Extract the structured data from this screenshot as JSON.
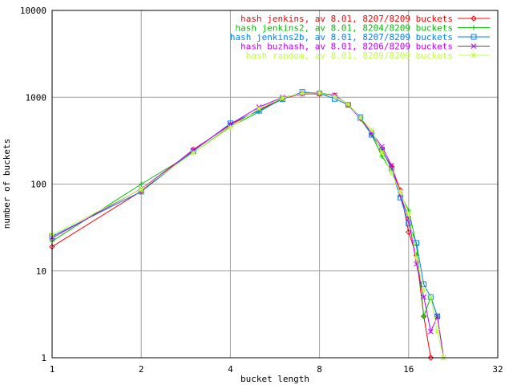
{
  "chart_data": {
    "type": "line",
    "xlabel": "bucket length",
    "ylabel": "number of buckets",
    "x_scale": "log2",
    "y_scale": "log10",
    "xlim": [
      1,
      32
    ],
    "ylim": [
      1,
      10000
    ],
    "grid": true,
    "legend_position": "top-right",
    "x_ticks": [
      "1",
      "2",
      "4",
      "8",
      "16",
      "32"
    ],
    "y_ticks": [
      "1",
      "10",
      "100",
      "1000",
      "10000"
    ],
    "series": [
      {
        "name": "hash jenkins, av 8.01, 8207/8209 buckets",
        "color": "#ff0000",
        "marker": "diamond",
        "points": [
          [
            1,
            19
          ],
          [
            2,
            83
          ],
          [
            3,
            250
          ],
          [
            4,
            480
          ],
          [
            5,
            720
          ],
          [
            6,
            960
          ],
          [
            7,
            1100
          ],
          [
            8,
            1090
          ],
          [
            9,
            1050
          ],
          [
            10,
            820
          ],
          [
            11,
            570
          ],
          [
            12,
            380
          ],
          [
            13,
            240
          ],
          [
            14,
            160
          ],
          [
            15,
            85
          ],
          [
            16,
            28
          ],
          [
            17,
            15
          ],
          [
            18,
            3
          ],
          [
            19,
            1
          ]
        ]
      },
      {
        "name": "hash jenkins2, av 8.01, 8204/8209 buckets",
        "color": "#00c000",
        "marker": "plus",
        "points": [
          [
            1,
            22
          ],
          [
            2,
            100
          ],
          [
            3,
            230
          ],
          [
            4,
            460
          ],
          [
            5,
            680
          ],
          [
            6,
            970
          ],
          [
            7,
            1120
          ],
          [
            8,
            1130
          ],
          [
            9,
            1040
          ],
          [
            10,
            830
          ],
          [
            11,
            560
          ],
          [
            12,
            370
          ],
          [
            13,
            210
          ],
          [
            14,
            140
          ],
          [
            15,
            75
          ],
          [
            16,
            50
          ],
          [
            17,
            20
          ],
          [
            18,
            3
          ],
          [
            19,
            5
          ],
          [
            20,
            3
          ],
          [
            21,
            1
          ]
        ]
      },
      {
        "name": "hash jenkins2b, av 8.01, 8207/8209 buckets",
        "color": "#0080ff",
        "marker": "square",
        "points": [
          [
            1,
            25
          ],
          [
            2,
            82
          ],
          [
            3,
            240
          ],
          [
            4,
            500
          ],
          [
            5,
            700
          ],
          [
            6,
            950
          ],
          [
            7,
            1150
          ],
          [
            8,
            1110
          ],
          [
            9,
            960
          ],
          [
            10,
            820
          ],
          [
            11,
            590
          ],
          [
            12,
            370
          ],
          [
            13,
            250
          ],
          [
            14,
            150
          ],
          [
            15,
            70
          ],
          [
            16,
            35
          ],
          [
            17,
            21
          ],
          [
            18,
            7
          ],
          [
            19,
            5
          ],
          [
            20,
            3
          ]
        ]
      },
      {
        "name": "hash buzhash, av 8.01, 8206/8209 buckets",
        "color": "#c000ff",
        "marker": "cross",
        "points": [
          [
            1,
            24
          ],
          [
            2,
            88
          ],
          [
            3,
            245
          ],
          [
            4,
            490
          ],
          [
            5,
            770
          ],
          [
            6,
            1000
          ],
          [
            7,
            1090
          ],
          [
            8,
            1100
          ],
          [
            9,
            1060
          ],
          [
            10,
            810
          ],
          [
            11,
            570
          ],
          [
            12,
            390
          ],
          [
            13,
            270
          ],
          [
            14,
            165
          ],
          [
            15,
            75
          ],
          [
            16,
            40
          ],
          [
            17,
            12
          ],
          [
            18,
            5
          ],
          [
            19,
            2
          ],
          [
            20,
            3
          ],
          [
            21,
            1
          ]
        ]
      },
      {
        "name": "hash random, av 8.01, 8209/8209 buckets",
        "color": "#c0ff40",
        "marker": "star",
        "points": [
          [
            1,
            26
          ],
          [
            2,
            87
          ],
          [
            3,
            230
          ],
          [
            4,
            450
          ],
          [
            5,
            740
          ],
          [
            6,
            980
          ],
          [
            7,
            1110
          ],
          [
            8,
            1120
          ],
          [
            9,
            1020
          ],
          [
            10,
            830
          ],
          [
            11,
            580
          ],
          [
            12,
            420
          ],
          [
            13,
            230
          ],
          [
            14,
            135
          ],
          [
            15,
            80
          ],
          [
            16,
            45
          ],
          [
            17,
            14
          ],
          [
            18,
            6
          ],
          [
            19,
            5
          ],
          [
            20,
            2
          ],
          [
            21,
            1
          ]
        ]
      }
    ]
  }
}
